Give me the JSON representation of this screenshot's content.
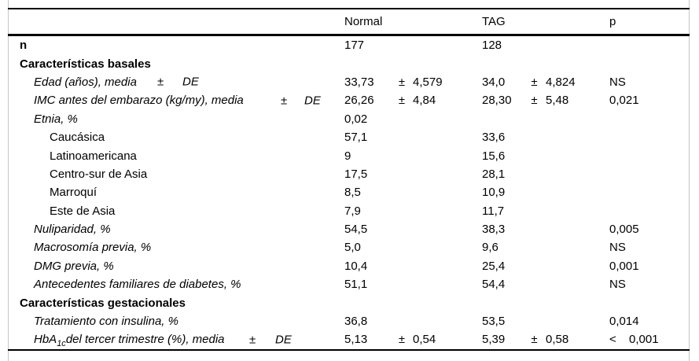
{
  "colors": {
    "background": "#ffffff",
    "text": "#000000",
    "rule": "#000000",
    "boundary_guide": "#c6c6c6"
  },
  "table": {
    "columns": [
      "",
      "Normal",
      "TAG",
      "p"
    ],
    "rows": [
      {
        "key": "n",
        "bold": true,
        "indent": 0,
        "label": "n",
        "n_v": "177",
        "t_v": "128"
      },
      {
        "key": "basales",
        "bold": true,
        "indent": 0,
        "label": "Características basales"
      },
      {
        "key": "edad",
        "italic": true,
        "indent": 1,
        "label": "Edad (años), media",
        "pm": "±",
        "de": "DE",
        "n_v": "33,73",
        "n_pm": "±",
        "n_sd": "4,579",
        "t_v": "34,0",
        "t_pm": "±",
        "t_sd": "4,824",
        "p_v": "NS"
      },
      {
        "key": "imc",
        "italic": true,
        "indent": 1,
        "label": "IMC antes del embarazo (kg/my), media",
        "pm": "±",
        "de": "DE",
        "n_v": "26,26",
        "n_pm": "±",
        "n_sd": "4,84",
        "t_v": "28,30",
        "t_pm": "±",
        "t_sd": "5,48",
        "p_v": "0,021"
      },
      {
        "key": "etnia",
        "italic": true,
        "indent": 1,
        "label": "Etnia, %",
        "n_v": "0,02"
      },
      {
        "key": "caucasica",
        "indent": 2,
        "label": "Caucásica",
        "n_v": "57,1",
        "t_v": "33,6"
      },
      {
        "key": "latinoamericana",
        "indent": 2,
        "label": "Latinoamericana",
        "n_v": "9",
        "t_v": "15,6"
      },
      {
        "key": "centro-sur-asia",
        "indent": 2,
        "label": "Centro-sur de Asia",
        "n_v": "17,5",
        "t_v": "28,1"
      },
      {
        "key": "marroqui",
        "indent": 2,
        "label": "Marroquí",
        "n_v": "8,5",
        "t_v": "10,9"
      },
      {
        "key": "este-asia",
        "indent": 2,
        "label": "Este de Asia",
        "n_v": "7,9",
        "t_v": "11,7"
      },
      {
        "key": "nuliparidad",
        "italic": true,
        "indent": 1,
        "label": "Nuliparidad, %",
        "n_v": "54,5",
        "t_v": "38,3",
        "p_v": "0,005"
      },
      {
        "key": "macrosomia",
        "italic": true,
        "indent": 1,
        "label": "Macrosomía previa, %",
        "n_v": "5,0",
        "t_v": "9,6",
        "p_v": "NS"
      },
      {
        "key": "dmg",
        "italic": true,
        "indent": 1,
        "label": "DMG previa, %",
        "n_v": "10,4",
        "t_v": "25,4",
        "p_v": "0,001"
      },
      {
        "key": "antecedentes",
        "italic": true,
        "indent": 1,
        "label": "Antecedentes familiares de diabetes, %",
        "n_v": "51,1",
        "t_v": "54,4",
        "p_v": "NS"
      },
      {
        "key": "gestacionales",
        "bold": true,
        "indent": 0,
        "label": "Características gestacionales"
      },
      {
        "key": "insulina",
        "italic": true,
        "indent": 1,
        "label": "Tratamiento con insulina, %",
        "n_v": "36,8",
        "t_v": "53,5",
        "p_v": "0,014"
      },
      {
        "key": "hba1c",
        "italic": true,
        "indent": 1,
        "label_pre": "HbA",
        "label_sub": "1c",
        "label": "del tercer trimestre (%), media",
        "pm": "±",
        "de": "DE",
        "n_v": "5,13",
        "n_pm": "±",
        "n_sd": "0,54",
        "t_v": "5,39",
        "t_pm": "±",
        "t_sd": "0,58",
        "p_lt": "<",
        "p_v": "0,001"
      }
    ]
  }
}
